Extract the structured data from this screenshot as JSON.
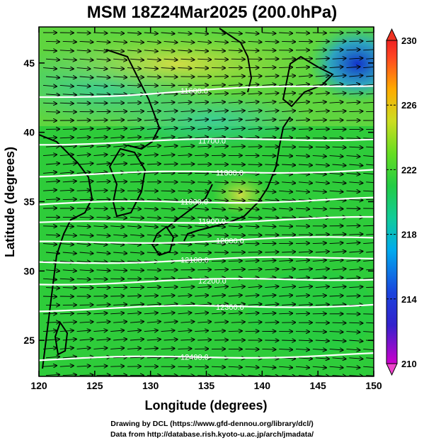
{
  "title": "MSM 18Z24Mar2025 (200.0hPa)",
  "x_axis": {
    "label": "Longitude (degrees)",
    "ticks": [
      "120",
      "125",
      "130",
      "135",
      "140",
      "145",
      "150"
    ],
    "range": [
      120,
      150
    ]
  },
  "y_axis": {
    "label": "Latitude  (degrees)",
    "ticks": [
      "25",
      "30",
      "35",
      "40",
      "45"
    ],
    "range": [
      22.4,
      47.6
    ]
  },
  "colorbar": {
    "ticks": [
      "210",
      "214",
      "218",
      "222",
      "226",
      "230"
    ],
    "range": [
      210,
      230
    ],
    "colors": [
      "#cc00cc",
      "#1a1acc",
      "#00aaee",
      "#22cc66",
      "#33dd33",
      "#99dd22",
      "#ccdd22",
      "#ffaa00",
      "#ff5522",
      "#ee2222"
    ]
  },
  "contours": [
    {
      "label": "11600.0",
      "lat": 43.0
    },
    {
      "label": "11700.0",
      "lat": 39.4
    },
    {
      "label": "11800.0",
      "lat": 37.1
    },
    {
      "label": "11900.0",
      "lat": 35.0
    },
    {
      "label": "11900.0",
      "lat": 33.6
    },
    {
      "label": "12000.0",
      "lat": 32.2
    },
    {
      "label": "12100.0",
      "lat": 30.8
    },
    {
      "label": "12200.0",
      "lat": 29.3
    },
    {
      "label": "12300.0",
      "lat": 27.4
    },
    {
      "label": "12400.0",
      "lat": 23.8
    }
  ],
  "credits": [
    "Drawing by DCL (https://www.gfd-dennou.org/library/dcl/)",
    "Data from http://database.rish.kyoto-u.ac.jp/arch/jmadata/"
  ],
  "colors": {
    "field_main": "#2ecc3a",
    "field_light": "#88dd33",
    "field_cool": "#1fbe88",
    "field_blue": "#2244cc",
    "contour": "#ffffff",
    "vectors": "#000000"
  }
}
